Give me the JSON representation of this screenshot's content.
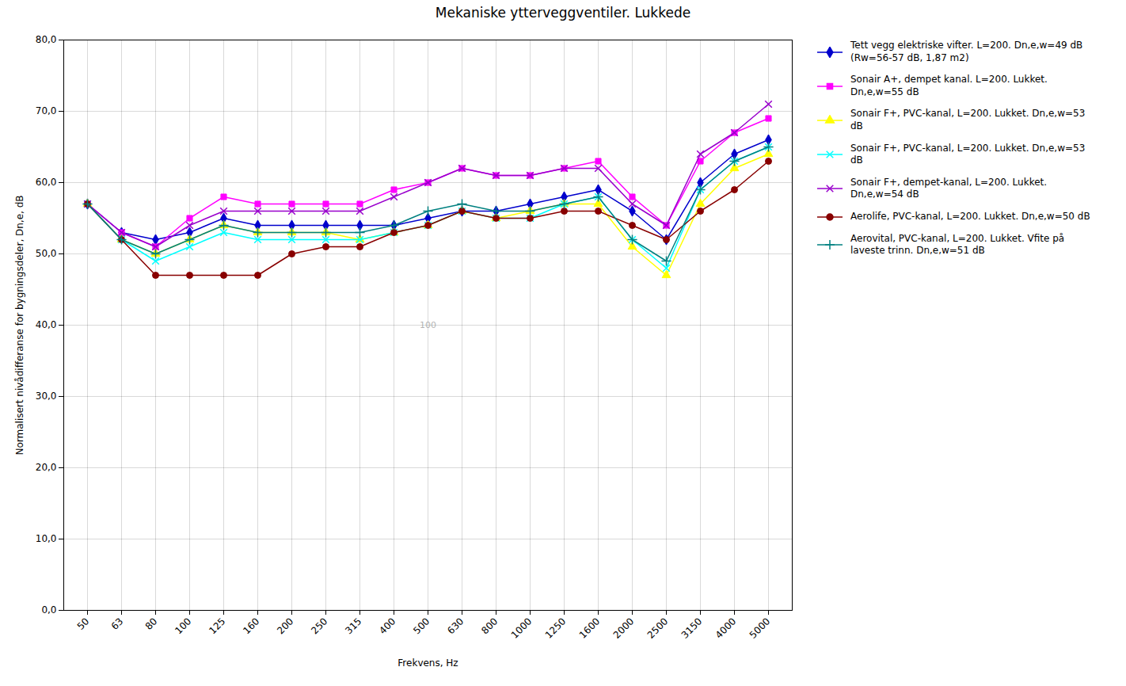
{
  "chart_data": {
    "type": "line",
    "title": "Mekaniske ytterveggventiler. Lukkede",
    "xlabel": "Frekvens, Hz",
    "ylabel": "Normalisert nivådifferanse for bygningsdeler, Dn,e, dB",
    "categories": [
      "50",
      "63",
      "80",
      "100",
      "125",
      "160",
      "200",
      "250",
      "315",
      "400",
      "500",
      "630",
      "800",
      "1000",
      "1250",
      "1600",
      "2000",
      "2500",
      "3150",
      "4000",
      "5000"
    ],
    "ylim": [
      0,
      80
    ],
    "yticks": [
      {
        "value": 0,
        "label": "0,0"
      },
      {
        "value": 10,
        "label": "10,0"
      },
      {
        "value": 20,
        "label": "20,0"
      },
      {
        "value": 30,
        "label": "30,0"
      },
      {
        "value": 40,
        "label": "40,0"
      },
      {
        "value": 50,
        "label": "50,0"
      },
      {
        "value": 60,
        "label": "60,0"
      },
      {
        "value": 70,
        "label": "70,0"
      },
      {
        "value": 80,
        "label": "80,0"
      }
    ],
    "grid": true,
    "legend": "right",
    "annotations": [
      {
        "text": "100"
      }
    ],
    "series": [
      {
        "name": "Tett vegg elektriske vifter. L=200. Dn,e,w=49 dB\n(Rw=56-57 dB, 1,87 m2)",
        "color": "#0000CC",
        "marker": "diamond",
        "values": [
          57,
          53,
          52,
          53,
          55,
          54,
          54,
          54,
          54,
          54,
          55,
          56,
          56,
          57,
          58,
          59,
          56,
          52,
          60,
          64,
          66
        ]
      },
      {
        "name": "Sonair A+, dempet kanal. L=200. Lukket.\nDn,e,w=55 dB",
        "color": "#FF00FF",
        "marker": "square",
        "values": [
          57,
          53,
          51,
          55,
          58,
          57,
          57,
          57,
          57,
          59,
          60,
          62,
          61,
          61,
          62,
          63,
          58,
          54,
          63,
          67,
          69
        ]
      },
      {
        "name": "Sonair F+, PVC-kanal, L=200. Lukket. Dn,e,w=53\ndB",
        "color": "#FFFF00",
        "marker": "triangle",
        "values": [
          57,
          52,
          50,
          52,
          54,
          53,
          53,
          53,
          52,
          53,
          54,
          56,
          55,
          56,
          57,
          57,
          51,
          47,
          57,
          62,
          64
        ]
      },
      {
        "name": "Sonair F+, PVC-kanal, L=200. Lukket. Dn,e,w=53\ndB",
        "color": "#00FFFF",
        "marker": "times",
        "values": [
          57,
          52,
          49,
          51,
          53,
          52,
          52,
          52,
          52,
          53,
          54,
          56,
          55,
          55,
          57,
          58,
          52,
          48,
          59,
          63,
          65
        ]
      },
      {
        "name": "Sonair F+, dempet-kanal, L=200. Lukket.\nDn,e,w=54 dB",
        "color": "#9900CC",
        "marker": "times",
        "values": [
          57,
          53,
          51,
          54,
          56,
          56,
          56,
          56,
          56,
          58,
          60,
          62,
          61,
          61,
          62,
          62,
          57,
          54,
          64,
          67,
          71
        ]
      },
      {
        "name": "Aerolife, PVC-kanal, L=200. Lukket. Dn,e,w=50 dB",
        "color": "#880000",
        "marker": "circle",
        "values": [
          57,
          52,
          47,
          47,
          47,
          47,
          50,
          51,
          51,
          53,
          54,
          56,
          55,
          55,
          56,
          56,
          54,
          52,
          56,
          59,
          63
        ]
      },
      {
        "name": "Aerovital, PVC-kanal, L=200. Lukket. Vfite på\nlaveste trinn. Dn,e,w=51 dB",
        "color": "#008080",
        "marker": "plus",
        "values": [
          57,
          52,
          50,
          52,
          54,
          53,
          53,
          53,
          53,
          54,
          56,
          57,
          56,
          56,
          57,
          58,
          52,
          49,
          59,
          63,
          65
        ]
      }
    ]
  }
}
